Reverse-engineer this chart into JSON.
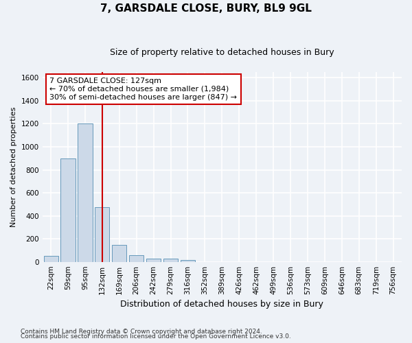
{
  "title": "7, GARSDALE CLOSE, BURY, BL9 9GL",
  "subtitle": "Size of property relative to detached houses in Bury",
  "xlabel": "Distribution of detached houses by size in Bury",
  "ylabel": "Number of detached properties",
  "footnote1": "Contains HM Land Registry data © Crown copyright and database right 2024.",
  "footnote2": "Contains public sector information licensed under the Open Government Licence v3.0.",
  "annotation_line1": "7 GARSDALE CLOSE: 127sqm",
  "annotation_line2": "← 70% of detached houses are smaller (1,984)",
  "annotation_line3": "30% of semi-detached houses are larger (847) →",
  "bar_color": "#ccd9e8",
  "bar_edge_color": "#6699bb",
  "vline_color": "#cc0000",
  "vline_x_idx": 3,
  "categories": [
    "22sqm",
    "59sqm",
    "95sqm",
    "132sqm",
    "169sqm",
    "206sqm",
    "242sqm",
    "279sqm",
    "316sqm",
    "352sqm",
    "389sqm",
    "426sqm",
    "462sqm",
    "499sqm",
    "536sqm",
    "573sqm",
    "609sqm",
    "646sqm",
    "683sqm",
    "719sqm",
    "756sqm"
  ],
  "values": [
    50,
    900,
    1200,
    475,
    150,
    55,
    30,
    25,
    15,
    0,
    0,
    0,
    0,
    0,
    0,
    0,
    0,
    0,
    0,
    0,
    0
  ],
  "ylim": [
    0,
    1650
  ],
  "yticks": [
    0,
    200,
    400,
    600,
    800,
    1000,
    1200,
    1400,
    1600
  ],
  "bg_color": "#eef2f7",
  "grid_color": "#ffffff",
  "ann_box_facecolor": "#ffffff",
  "ann_box_edgecolor": "#cc0000",
  "title_fontsize": 11,
  "subtitle_fontsize": 9,
  "ylabel_fontsize": 8,
  "xlabel_fontsize": 9,
  "tick_fontsize": 7.5,
  "footnote_fontsize": 6.5,
  "ann_fontsize": 8
}
